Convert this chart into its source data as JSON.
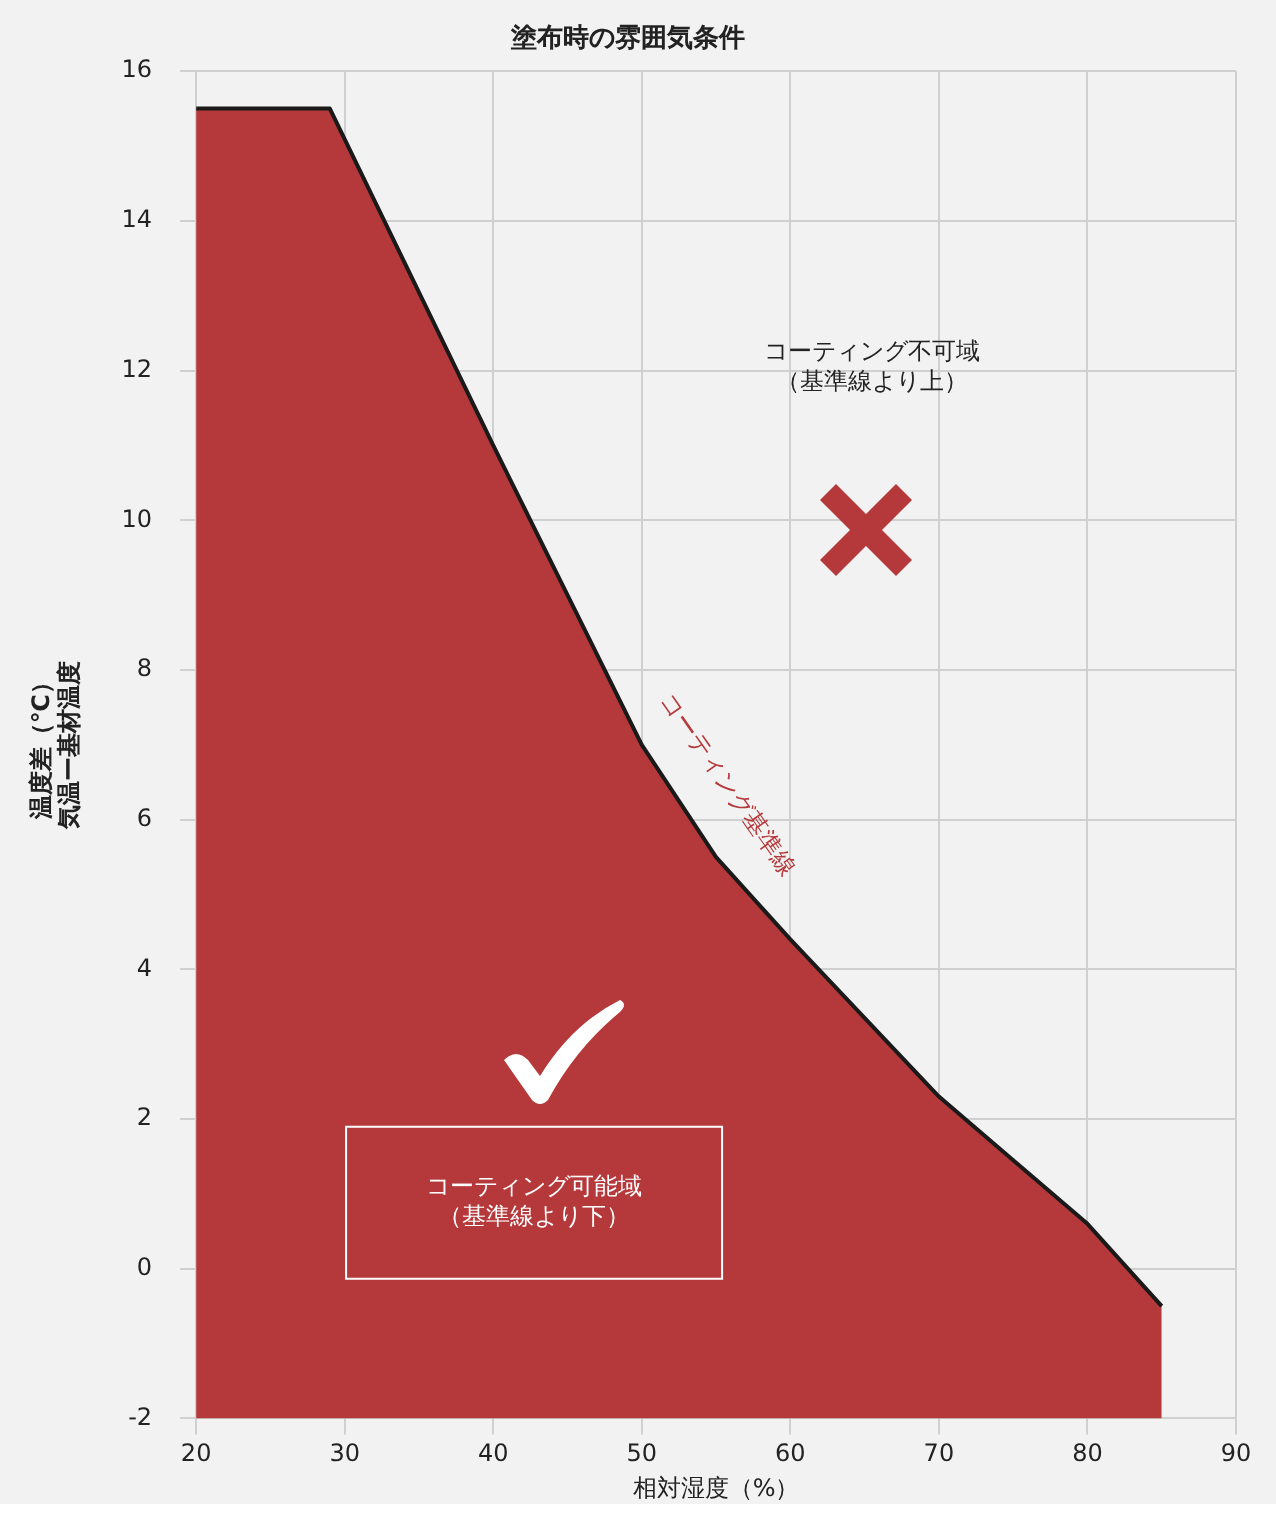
{
  "chart_data": {
    "type": "area",
    "title": "塗布時の雰囲気条件",
    "xlabel": "相対湿度（%）",
    "ylabel": "温度差（℃）気温ー基材温度",
    "x": [
      20,
      20,
      29,
      40,
      48,
      50,
      55,
      60,
      70,
      80,
      85,
      85
    ],
    "series": [
      {
        "color": "#b5383a",
        "values": [
          -2,
          15.5,
          15.5,
          11,
          7.8,
          7,
          5.5,
          4.4,
          2.3,
          0.6,
          -0.5,
          -2
        ]
      }
    ],
    "xlim": [
      20,
      90
    ],
    "xticks": [
      20,
      30,
      40,
      50,
      60,
      70,
      80,
      90
    ],
    "ylim": [
      -2,
      16
    ],
    "yticks": [
      -2,
      0,
      2,
      4,
      6,
      8,
      10,
      12,
      14,
      16
    ],
    "grid": true,
    "legend": false,
    "marker": "none",
    "annotations": [
      "コーティング不可域",
      "（基準線より上）",
      "コーティング基準線",
      "コーティング可能域",
      "（基準線より下）"
    ]
  }
}
